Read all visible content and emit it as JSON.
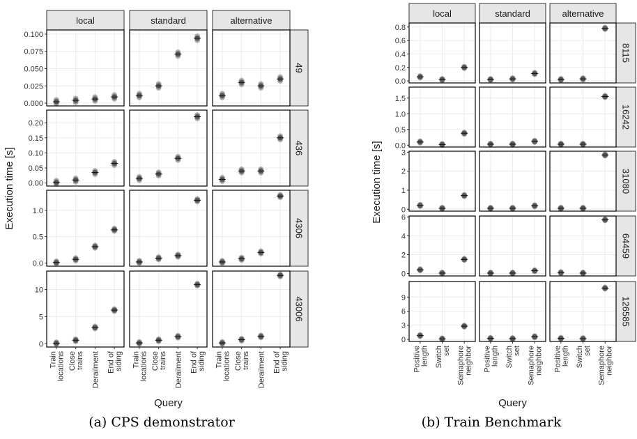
{
  "captions": {
    "a": "(a) CPS demonstrator",
    "b": "(b) Train Benchmark"
  },
  "colors": {
    "strip_fill": "#e6e6e6",
    "point": "#555555",
    "point_light": "#d9d9d9",
    "frame": "#000000",
    "grid": "#ebebeb"
  },
  "chart_data": [
    {
      "id": "cps",
      "type": "scatter",
      "title": "",
      "xlabel": "Query",
      "ylabel": "Execution time [s]",
      "columns": [
        "local",
        "standard",
        "alternative"
      ],
      "categories": [
        "Train locations",
        "Close trains",
        "Derailment",
        "End of siding"
      ],
      "category_lines": [
        [
          "Train",
          "locations"
        ],
        [
          "Close",
          "trains"
        ],
        [
          "Derailment"
        ],
        [
          "End of",
          "siding"
        ]
      ],
      "rows": [
        {
          "label": "49",
          "ylim": [
            -0.004,
            0.106
          ],
          "ticks": [
            0,
            0.025,
            0.05,
            0.075,
            0.1
          ],
          "tick_labels": [
            "0.000",
            "0.025",
            "0.050",
            "0.075",
            "0.100"
          ],
          "values": [
            [
              0.002,
              0.004,
              0.006,
              0.009
            ],
            [
              0.011,
              0.025,
              0.071,
              0.094
            ],
            [
              0.011,
              0.03,
              0.025,
              0.035
            ]
          ],
          "spread": 0.006
        },
        {
          "label": "436",
          "ylim": [
            -0.01,
            0.242
          ],
          "ticks": [
            0,
            0.05,
            0.1,
            0.15,
            0.2
          ],
          "tick_labels": [
            "0.00",
            "0.05",
            "0.10",
            "0.15",
            "0.20"
          ],
          "values": [
            [
              0.002,
              0.01,
              0.035,
              0.065
            ],
            [
              0.015,
              0.03,
              0.082,
              0.22
            ],
            [
              0.012,
              0.04,
              0.04,
              0.15
            ]
          ],
          "spread": 0.012
        },
        {
          "label": "4306",
          "ylim": [
            -0.06,
            1.38
          ],
          "ticks": [
            0,
            0.5,
            1
          ],
          "tick_labels": [
            "0.0",
            "0.5",
            "1.0"
          ],
          "values": [
            [
              0.01,
              0.07,
              0.31,
              0.63
            ],
            [
              0.02,
              0.09,
              0.14,
              1.19
            ],
            [
              0.02,
              0.08,
              0.2,
              1.27
            ]
          ],
          "spread": 0.05
        },
        {
          "label": "43006",
          "ylim": [
            -0.6,
            13.4
          ],
          "ticks": [
            0,
            5,
            10
          ],
          "tick_labels": [
            "0",
            "5",
            "10"
          ],
          "values": [
            [
              0.1,
              0.65,
              3.0,
              6.2
            ],
            [
              0.15,
              0.65,
              1.3,
              10.9
            ],
            [
              0.15,
              0.75,
              1.35,
              12.6
            ]
          ],
          "spread": 0.4
        }
      ]
    },
    {
      "id": "train",
      "type": "scatter",
      "title": "",
      "xlabel": "Query",
      "ylabel": "Execution time [s]",
      "columns": [
        "local",
        "standard",
        "alternative"
      ],
      "categories": [
        "Positive length",
        "Switch set",
        "Semaphore neighbor"
      ],
      "category_lines": [
        [
          "Positive",
          "length"
        ],
        [
          "Switch",
          "set"
        ],
        [
          "Semaphore",
          "neighbor"
        ]
      ],
      "rows": [
        {
          "label": "8115",
          "ylim": [
            -0.03,
            0.86
          ],
          "ticks": [
            0,
            0.2,
            0.4,
            0.6,
            0.8
          ],
          "tick_labels": [
            "0.0",
            "0.2",
            "0.4",
            "0.6",
            "0.8"
          ],
          "values": [
            [
              0.06,
              0.02,
              0.2
            ],
            [
              0.02,
              0.03,
              0.11
            ],
            [
              0.02,
              0.03,
              0.78
            ]
          ],
          "spread": 0.025
        },
        {
          "label": "16242",
          "ylim": [
            -0.06,
            1.85
          ],
          "ticks": [
            0,
            0.5,
            1,
            1.5
          ],
          "tick_labels": [
            "0.0",
            "0.5",
            "1.0",
            "1.5"
          ],
          "values": [
            [
              0.1,
              0.02,
              0.38
            ],
            [
              0.03,
              0.03,
              0.12
            ],
            [
              0.03,
              0.03,
              1.55
            ]
          ],
          "spread": 0.05
        },
        {
          "label": "31080",
          "ylim": [
            -0.1,
            3.05
          ],
          "ticks": [
            0,
            1,
            2,
            3
          ],
          "tick_labels": [
            "0",
            "1",
            "2",
            "3"
          ],
          "values": [
            [
              0.2,
              0.05,
              0.72
            ],
            [
              0.05,
              0.05,
              0.18
            ],
            [
              0.05,
              0.05,
              2.85
            ]
          ],
          "spread": 0.08
        },
        {
          "label": "64459",
          "ylim": [
            -0.25,
            6.1
          ],
          "ticks": [
            0,
            2,
            4,
            6
          ],
          "tick_labels": [
            "0",
            "2",
            "4",
            "6"
          ],
          "values": [
            [
              0.4,
              0.05,
              1.5
            ],
            [
              0.05,
              0.05,
              0.3
            ],
            [
              0.1,
              0.05,
              5.7
            ]
          ],
          "spread": 0.15
        },
        {
          "label": "126585",
          "ylim": [
            -0.45,
            12.3
          ],
          "ticks": [
            0,
            3,
            6,
            9
          ],
          "tick_labels": [
            "0",
            "3",
            "6",
            "9"
          ],
          "values": [
            [
              0.8,
              0.1,
              2.8
            ],
            [
              0.2,
              0.15,
              0.55
            ],
            [
              0.2,
              0.15,
              10.9
            ]
          ],
          "spread": 0.3
        }
      ]
    }
  ]
}
